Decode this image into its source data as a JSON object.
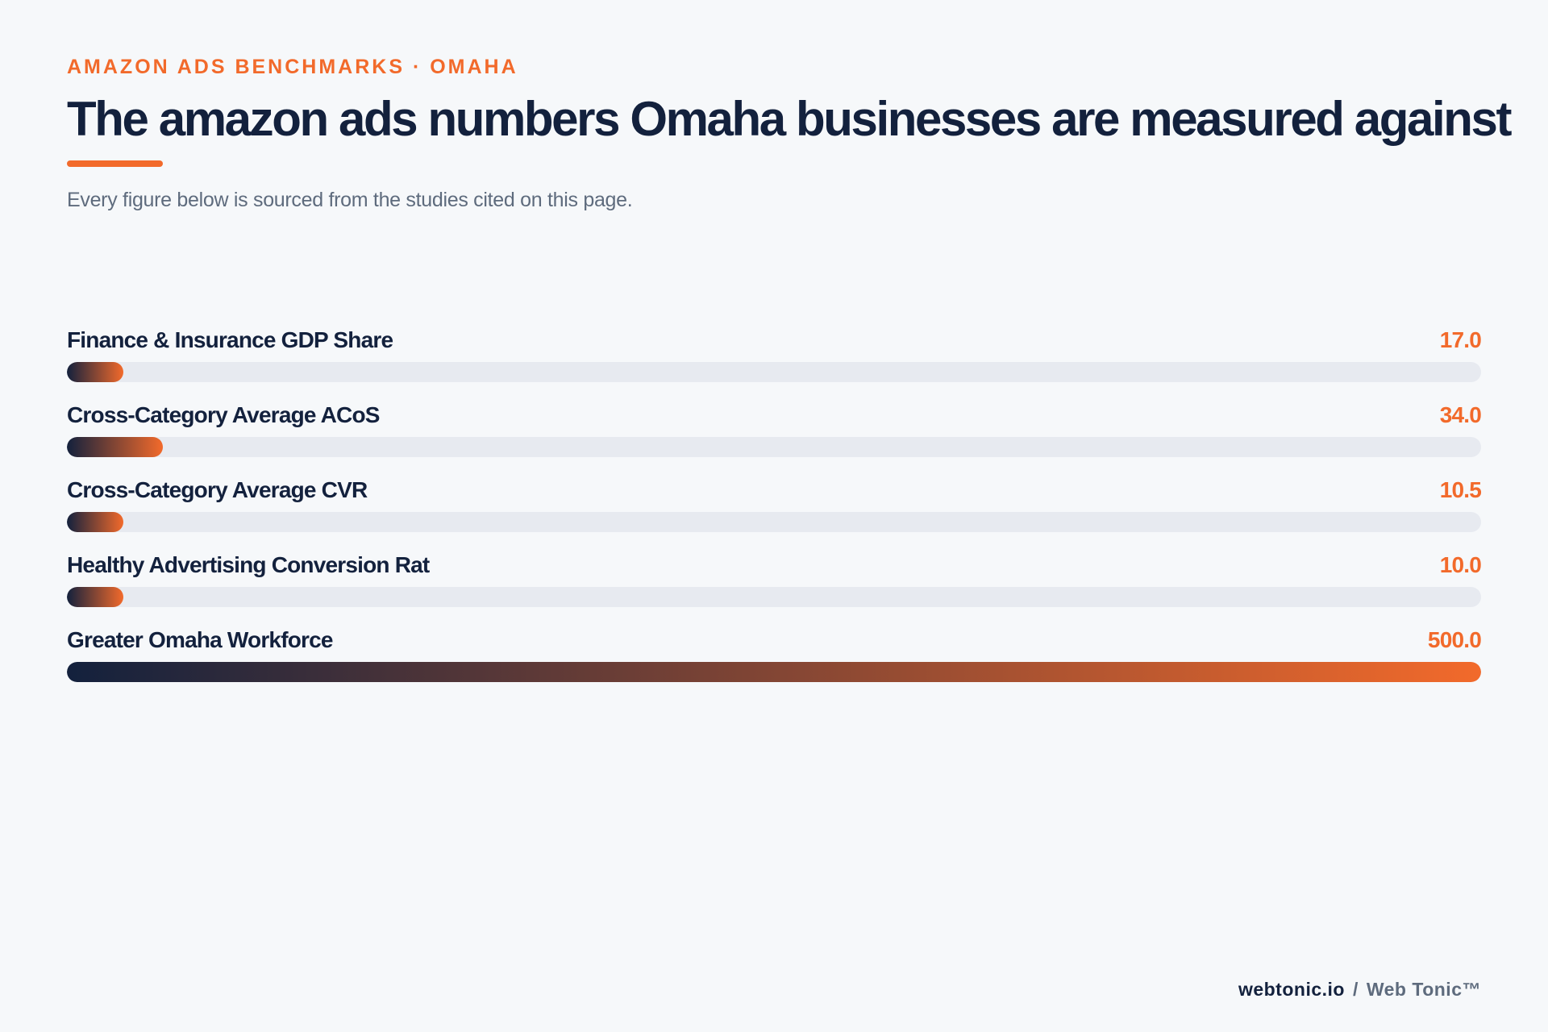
{
  "header": {
    "eyebrow": "AMAZON ADS BENCHMARKS · OMAHA",
    "title": "The amazon ads numbers Omaha businesses are measured against",
    "subtitle": "Every figure below is sourced from the studies cited on this page."
  },
  "chart_data": {
    "type": "bar",
    "orientation": "horizontal",
    "categories": [
      "Finance & Insurance GDP Share",
      "Cross-Category Average ACoS",
      "Cross-Category Average CVR",
      "Healthy Advertising Conversion Rat",
      "Greater Omaha Workforce"
    ],
    "values": [
      17.0,
      34.0,
      10.5,
      10.0,
      500.0
    ],
    "value_labels": [
      "17.0",
      "34.0",
      "10.5",
      "10.0",
      "500.0"
    ],
    "xlim": [
      0,
      500
    ],
    "min_fill_value": 20,
    "grid": false,
    "legend": "none",
    "colors": {
      "fill_start": "#13213d",
      "fill_end": "#f26a2b",
      "track": "#e7eaf0",
      "value_text": "#f26a2b",
      "label_text": "#13213d"
    }
  },
  "footer": {
    "domain": "webtonic.io",
    "separator": "/",
    "brand": "Web Tonic™"
  }
}
